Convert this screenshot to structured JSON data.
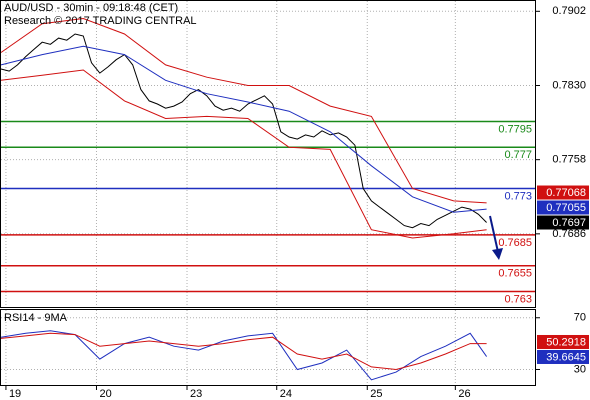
{
  "chart_data": {
    "type": "line",
    "title": "AUD/USD - 30min - 09:18:48 (CET)",
    "subtitle": "Research © 2017 TRADING CENTRAL",
    "xlim": [
      0,
      65
    ],
    "xticks": [
      {
        "value": 0.6,
        "label": "19"
      },
      {
        "value": 11.6,
        "label": "20"
      },
      {
        "value": 22.6,
        "label": "23"
      },
      {
        "value": 33.5,
        "label": "24"
      },
      {
        "value": 44.5,
        "label": "25"
      },
      {
        "value": 55.2,
        "label": "26"
      }
    ],
    "ylim": [
      0.7615,
      0.7912
    ],
    "yticks": [
      0.7902,
      {
        "value": 0.783,
        "label": "0.7830"
      },
      0.7758,
      0.7686
    ],
    "grid": true,
    "series": [
      {
        "color": "#000000",
        "x": [
          0,
          1,
          2,
          3,
          4,
          5,
          6,
          7,
          8,
          9,
          10,
          11,
          12,
          13,
          14,
          15,
          16,
          17,
          18,
          19,
          20,
          21,
          22,
          23,
          24,
          25,
          26,
          27,
          28,
          29,
          30,
          31,
          32,
          33,
          34,
          35,
          36,
          37,
          38,
          39,
          40,
          41,
          42,
          43,
          44,
          45,
          46,
          47,
          48,
          49,
          50,
          51,
          52,
          53,
          54,
          55,
          56,
          57,
          58,
          59
        ],
        "values": [
          0.7846,
          0.7844,
          0.785,
          0.7858,
          0.7865,
          0.7872,
          0.787,
          0.7876,
          0.7874,
          0.788,
          0.7878,
          0.7852,
          0.7842,
          0.7848,
          0.7855,
          0.786,
          0.785,
          0.7826,
          0.7815,
          0.7812,
          0.7808,
          0.781,
          0.7814,
          0.7822,
          0.7826,
          0.782,
          0.781,
          0.7806,
          0.7808,
          0.7805,
          0.7812,
          0.7816,
          0.782,
          0.7812,
          0.7785,
          0.778,
          0.7778,
          0.7782,
          0.778,
          0.7786,
          0.7782,
          0.7784,
          0.778,
          0.7772,
          0.773,
          0.7718,
          0.7712,
          0.7706,
          0.77,
          0.7694,
          0.7692,
          0.7696,
          0.7694,
          0.77,
          0.7704,
          0.7708,
          0.7712,
          0.771,
          0.7705,
          0.7697
        ]
      },
      {
        "color": "#1f2fbf",
        "x": [
          0,
          5,
          10,
          15,
          20,
          25,
          30,
          35,
          40,
          45,
          50,
          55,
          59
        ],
        "values": [
          0.785,
          0.786,
          0.7868,
          0.786,
          0.7835,
          0.7822,
          0.7814,
          0.7805,
          0.7785,
          0.7752,
          0.7722,
          0.7707,
          0.771
        ]
      },
      {
        "color": "#d01010",
        "x": [
          0,
          5,
          10,
          15,
          20,
          25,
          30,
          35,
          40,
          45,
          50,
          55,
          59
        ],
        "values": [
          0.7862,
          0.789,
          0.7895,
          0.788,
          0.785,
          0.7838,
          0.783,
          0.783,
          0.781,
          0.78,
          0.773,
          0.7718,
          0.7716
        ]
      },
      {
        "color": "#d01010",
        "x": [
          0,
          5,
          10,
          15,
          20,
          25,
          30,
          35,
          40,
          45,
          50,
          55,
          59
        ],
        "values": [
          0.7835,
          0.784,
          0.7845,
          0.7815,
          0.7798,
          0.78,
          0.7798,
          0.777,
          0.7768,
          0.769,
          0.7682,
          0.7686,
          0.769
        ]
      }
    ],
    "levels": [
      {
        "value": 0.7795,
        "color": "#1a8a1a"
      },
      {
        "value": 0.777,
        "color": "#1a8a1a"
      },
      {
        "value": 0.773,
        "color": "#1f2fbf"
      },
      {
        "value": 0.7685,
        "color": "#d01010"
      },
      {
        "value": 0.7655,
        "color": "#d01010"
      },
      {
        "value": 0.763,
        "color": "#d01010"
      }
    ],
    "price_markers": [
      {
        "value": 0.77068,
        "color": "#d01010"
      },
      {
        "value": 0.77055,
        "color": "#1f2fbf"
      },
      {
        "value": 0.7697,
        "color": "#000000"
      }
    ],
    "rsi": {
      "title": "RSI14 - 9MA",
      "ylim": [
        18,
        76
      ],
      "yticks": [
        70,
        30
      ],
      "series": [
        {
          "color": "#1f2fbf",
          "x": [
            0,
            3,
            6,
            9,
            12,
            15,
            18,
            21,
            24,
            27,
            30,
            33,
            36,
            39,
            42,
            45,
            48,
            51,
            54,
            57,
            59
          ],
          "values": [
            55,
            58,
            60,
            57,
            38,
            50,
            55,
            48,
            45,
            52,
            56,
            58,
            30,
            35,
            45,
            22,
            28,
            40,
            48,
            58,
            40
          ]
        },
        {
          "color": "#d01010",
          "x": [
            0,
            3,
            6,
            9,
            12,
            15,
            18,
            21,
            24,
            27,
            30,
            33,
            36,
            39,
            42,
            45,
            48,
            51,
            54,
            57,
            59
          ],
          "values": [
            54,
            56,
            58,
            57,
            48,
            50,
            52,
            50,
            48,
            50,
            53,
            55,
            42,
            38,
            42,
            32,
            30,
            35,
            42,
            50,
            50
          ]
        }
      ],
      "value_markers": [
        {
          "value": 50.2918,
          "color": "#d01010"
        },
        {
          "value": 39.6645,
          "color": "#1f2fbf"
        }
      ]
    }
  }
}
